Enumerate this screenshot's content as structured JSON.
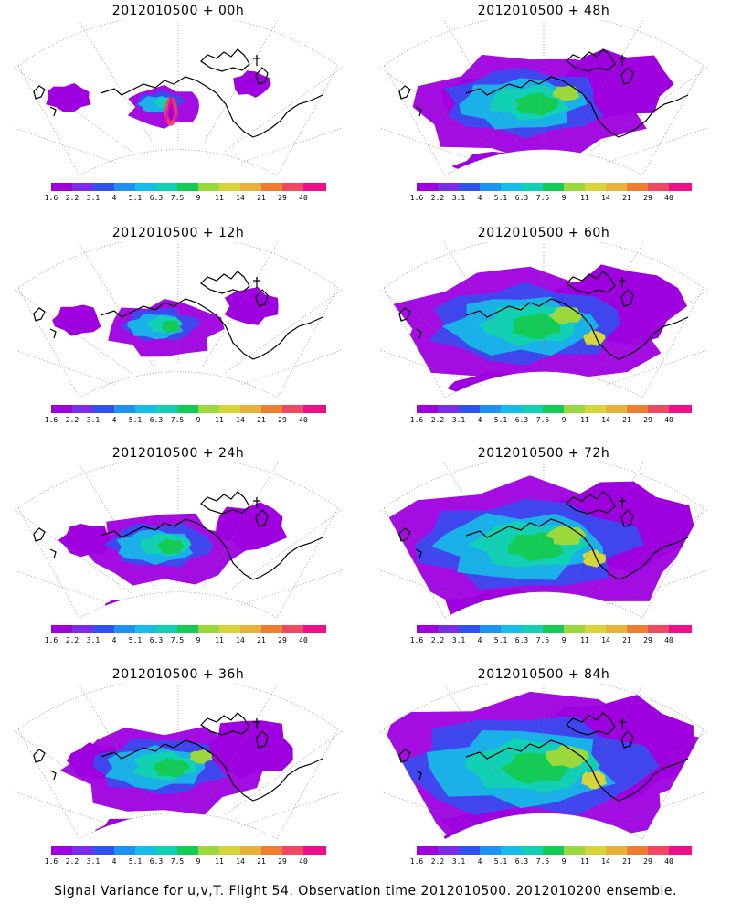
{
  "palette": [
    "#9e00e0",
    "#7b2ce8",
    "#2f52f0",
    "#1d92f2",
    "#16bce8",
    "#12d0b4",
    "#13cb55",
    "#9ad83c",
    "#d6d63a",
    "#e6b23a",
    "#f07e30",
    "#f04860",
    "#f20e88"
  ],
  "colorbar_labels": [
    "1.6",
    "2.2",
    "3.1",
    "4",
    "5.1",
    "6.3",
    "7.5",
    "9",
    "11",
    "14",
    "21",
    "29",
    "40"
  ],
  "panels": [
    {
      "id": "p00",
      "title": "2012010500 + 00h",
      "column": "left",
      "row": 0,
      "intensity": 0
    },
    {
      "id": "p48",
      "title": "2012010500 + 48h",
      "column": "right",
      "row": 0,
      "intensity": 4
    },
    {
      "id": "p12",
      "title": "2012010500 + 12h",
      "column": "left",
      "row": 1,
      "intensity": 1
    },
    {
      "id": "p60",
      "title": "2012010500 + 60h",
      "column": "right",
      "row": 1,
      "intensity": 5
    },
    {
      "id": "p24",
      "title": "2012010500 + 24h",
      "column": "left",
      "row": 2,
      "intensity": 2
    },
    {
      "id": "p72",
      "title": "2012010500 + 72h",
      "column": "right",
      "row": 2,
      "intensity": 6
    },
    {
      "id": "p36",
      "title": "2012010500 + 36h",
      "column": "left",
      "row": 3,
      "intensity": 3
    },
    {
      "id": "p84",
      "title": "2012010500 + 84h",
      "column": "right",
      "row": 3,
      "intensity": 7
    }
  ],
  "footer": "Signal Variance for u,v,T. Flight 54. Observation time 2012010500. 2012010200 ensemble."
}
